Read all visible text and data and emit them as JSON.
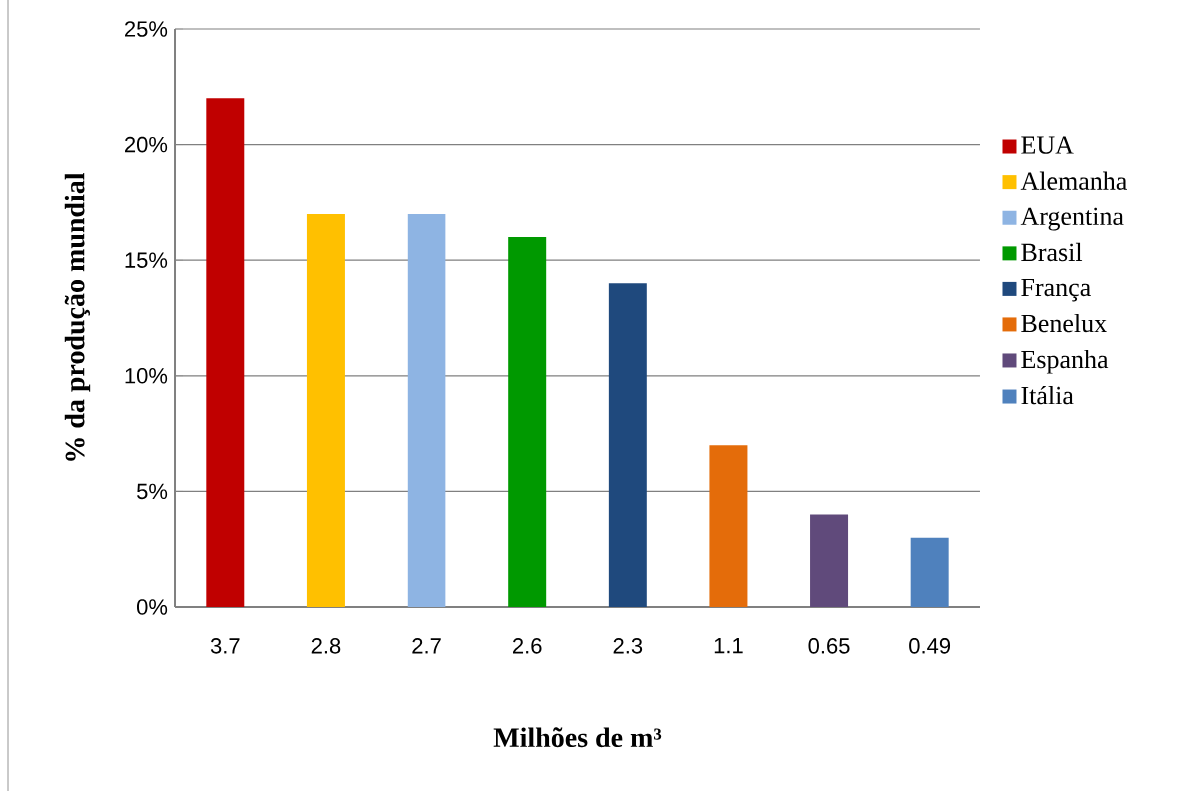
{
  "chart_data": {
    "type": "bar",
    "xlabel": "Milhões de m³",
    "ylabel": "% da produção mundial",
    "categories": [
      "3.7",
      "2.8",
      "2.7",
      "2.6",
      "2.3",
      "1.1",
      "0.65",
      "0.49"
    ],
    "series": [
      {
        "name": "EUA",
        "color": "#c00000",
        "values": [
          22,
          null,
          null,
          null,
          null,
          null,
          null,
          null
        ]
      },
      {
        "name": "Alemanha",
        "color": "#ffc000",
        "values": [
          null,
          17,
          null,
          null,
          null,
          null,
          null,
          null
        ]
      },
      {
        "name": "Argentina",
        "color": "#8eb4e3",
        "values": [
          null,
          null,
          17,
          null,
          null,
          null,
          null,
          null
        ]
      },
      {
        "name": "Brasil",
        "color": "#009900",
        "values": [
          null,
          null,
          null,
          16,
          null,
          null,
          null,
          null
        ]
      },
      {
        "name": "França",
        "color": "#1f497d",
        "values": [
          null,
          null,
          null,
          null,
          14,
          null,
          null,
          null
        ]
      },
      {
        "name": "Benelux",
        "color": "#e46c0a",
        "values": [
          null,
          null,
          null,
          null,
          null,
          7,
          null,
          null
        ]
      },
      {
        "name": "Espanha",
        "color": "#604a7b",
        "values": [
          null,
          null,
          null,
          null,
          null,
          null,
          4,
          null
        ]
      },
      {
        "name": "Itália",
        "color": "#4f81bd",
        "values": [
          null,
          null,
          null,
          null,
          null,
          null,
          null,
          3
        ]
      }
    ],
    "ylim": [
      0,
      25
    ],
    "yticks": [
      {
        "value": 0,
        "label": "0%"
      },
      {
        "value": 5,
        "label": "5%"
      },
      {
        "value": 10,
        "label": "10%"
      },
      {
        "value": 15,
        "label": "15%"
      },
      {
        "value": 20,
        "label": "20%"
      },
      {
        "value": 25,
        "label": "25%"
      }
    ],
    "grid": "y",
    "legend": "right"
  }
}
